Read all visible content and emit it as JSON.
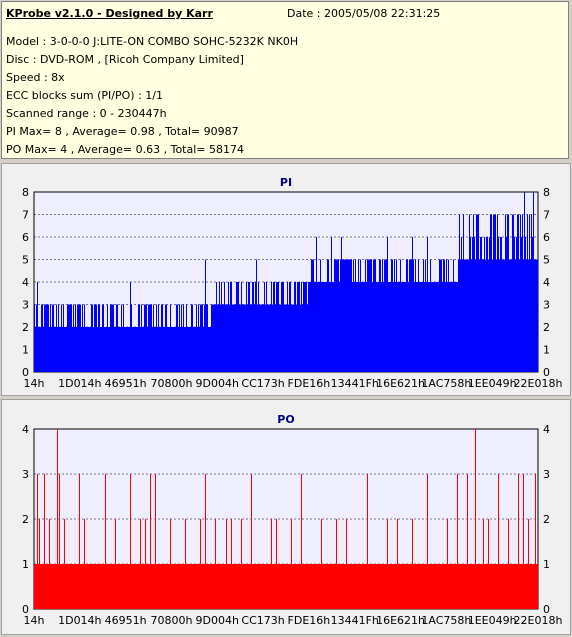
{
  "info": {
    "title": "KProbe v2.1.0 - Designed by Karr",
    "date": "Date : 2005/05/08 22:31:25",
    "lines": [
      "Model : 3-0-0-0 J:LITE-ON COMBO SOHC-5232K NK0H",
      "Disc : DVD-ROM ,  [Ricoh Company Limited]",
      "Speed : 8x",
      "ECC blocks sum (PI/PO) : 1/1",
      "Scanned range : 0 - 230447h",
      "PI Max= 8 , Average= 0.98 , Total= 90987",
      "PO Max= 4 , Average= 0.63 , Total= 58174"
    ]
  },
  "colors": {
    "pi": "#0000ff",
    "po": "#ff0000",
    "plot_bg": "#eeeeff",
    "title": "#000080"
  },
  "chart_data": [
    {
      "type": "bar",
      "title": "PI",
      "ylim": [
        0,
        8
      ],
      "y_ticks": [
        0,
        1,
        2,
        3,
        4,
        5,
        6,
        7,
        8
      ],
      "x_tick_labels": [
        "14h",
        "1D014h",
        "46951h",
        "70800h",
        "9D004h",
        "CC173h",
        "FDE16h",
        "13441Fh",
        "16E621h",
        "1AC758h",
        "1EE049h",
        "22E018h"
      ],
      "grid": true,
      "series": [
        {
          "segments": [
            {
              "from": 0.0,
              "to": 0.36,
              "base": 2,
              "peak": 3
            },
            {
              "from": 0.36,
              "to": 0.55,
              "base": 3,
              "peak": 4
            },
            {
              "from": 0.55,
              "to": 0.84,
              "base": 4,
              "peak": 5
            },
            {
              "from": 0.84,
              "to": 1.0,
              "base": 5,
              "peak": 7
            }
          ],
          "spikes": [
            {
              "at": 0.005,
              "value": 4
            },
            {
              "at": 0.19,
              "value": 4
            },
            {
              "at": 0.34,
              "value": 5
            },
            {
              "at": 0.44,
              "value": 5
            },
            {
              "at": 0.55,
              "value": 5
            },
            {
              "at": 0.56,
              "value": 6
            },
            {
              "at": 0.59,
              "value": 6
            },
            {
              "at": 0.61,
              "value": 6
            },
            {
              "at": 0.7,
              "value": 6
            },
            {
              "at": 0.75,
              "value": 6
            },
            {
              "at": 0.78,
              "value": 6
            },
            {
              "at": 0.88,
              "value": 7
            },
            {
              "at": 0.91,
              "value": 7
            },
            {
              "at": 0.94,
              "value": 7
            },
            {
              "at": 0.96,
              "value": 7
            },
            {
              "at": 0.973,
              "value": 8
            },
            {
              "at": 0.99,
              "value": 8
            }
          ]
        }
      ]
    },
    {
      "type": "bar",
      "title": "PO",
      "ylim": [
        0,
        4
      ],
      "y_ticks": [
        0,
        1,
        2,
        3,
        4
      ],
      "x_tick_labels": [
        "14h",
        "1D014h",
        "46951h",
        "70800h",
        "9D004h",
        "CC173h",
        "FDE16h",
        "13441Fh",
        "16E621h",
        "1AC758h",
        "1EE049h",
        "22E018h"
      ],
      "grid": true,
      "series": [
        {
          "segments": [
            {
              "from": 0.0,
              "to": 1.0,
              "base": 1,
              "peak": 1
            }
          ],
          "spikes": [
            {
              "at": 0.005,
              "value": 3
            },
            {
              "at": 0.01,
              "value": 2
            },
            {
              "at": 0.02,
              "value": 3
            },
            {
              "at": 0.03,
              "value": 2
            },
            {
              "at": 0.045,
              "value": 4
            },
            {
              "at": 0.05,
              "value": 3
            },
            {
              "at": 0.06,
              "value": 2
            },
            {
              "at": 0.09,
              "value": 3
            },
            {
              "at": 0.1,
              "value": 2
            },
            {
              "at": 0.14,
              "value": 3
            },
            {
              "at": 0.16,
              "value": 2
            },
            {
              "at": 0.19,
              "value": 3
            },
            {
              "at": 0.21,
              "value": 2
            },
            {
              "at": 0.22,
              "value": 2
            },
            {
              "at": 0.23,
              "value": 3
            },
            {
              "at": 0.24,
              "value": 3
            },
            {
              "at": 0.27,
              "value": 2
            },
            {
              "at": 0.3,
              "value": 2
            },
            {
              "at": 0.33,
              "value": 2
            },
            {
              "at": 0.34,
              "value": 3
            },
            {
              "at": 0.36,
              "value": 2
            },
            {
              "at": 0.38,
              "value": 2
            },
            {
              "at": 0.39,
              "value": 2
            },
            {
              "at": 0.41,
              "value": 2
            },
            {
              "at": 0.43,
              "value": 3
            },
            {
              "at": 0.47,
              "value": 2
            },
            {
              "at": 0.48,
              "value": 2
            },
            {
              "at": 0.51,
              "value": 2
            },
            {
              "at": 0.53,
              "value": 3
            },
            {
              "at": 0.57,
              "value": 2
            },
            {
              "at": 0.6,
              "value": 2
            },
            {
              "at": 0.62,
              "value": 2
            },
            {
              "at": 0.66,
              "value": 3
            },
            {
              "at": 0.7,
              "value": 2
            },
            {
              "at": 0.72,
              "value": 2
            },
            {
              "at": 0.75,
              "value": 2
            },
            {
              "at": 0.78,
              "value": 3
            },
            {
              "at": 0.82,
              "value": 2
            },
            {
              "at": 0.84,
              "value": 3
            },
            {
              "at": 0.86,
              "value": 3
            },
            {
              "at": 0.875,
              "value": 4
            },
            {
              "at": 0.89,
              "value": 2
            },
            {
              "at": 0.9,
              "value": 2
            },
            {
              "at": 0.92,
              "value": 3
            },
            {
              "at": 0.94,
              "value": 2
            },
            {
              "at": 0.96,
              "value": 3
            },
            {
              "at": 0.97,
              "value": 3
            },
            {
              "at": 0.98,
              "value": 2
            },
            {
              "at": 0.995,
              "value": 3
            }
          ]
        }
      ]
    }
  ]
}
